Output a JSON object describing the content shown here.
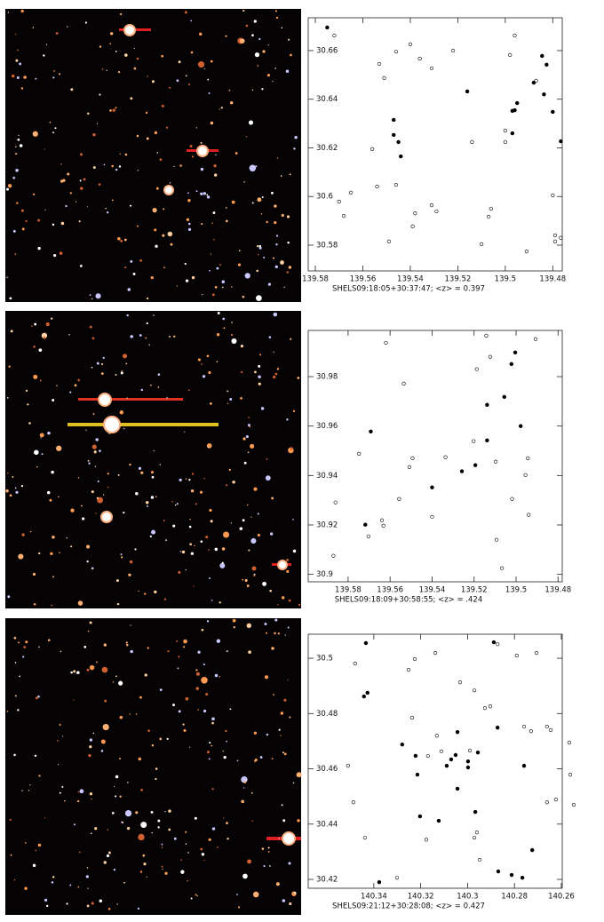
{
  "chart_data": [
    {
      "type": "scatter",
      "xlabel": "SHELS09:18:05+30:37:47; <z> = 0.397",
      "xlim": [
        139.583,
        139.476
      ],
      "ylim": [
        30.5694,
        30.6735
      ],
      "xticks": [
        139.58,
        139.56,
        139.54,
        139.52,
        139.5,
        139.48
      ],
      "yticks": [
        30.58,
        30.6,
        30.62,
        30.64,
        30.66
      ],
      "series": [
        {
          "color": "#000000",
          "filled": true,
          "x": [
            139.575,
            139.547,
            139.547,
            139.545,
            139.544,
            139.516,
            139.497,
            139.496,
            139.495,
            139.497,
            139.4845,
            139.4826,
            139.488,
            139.4837,
            139.48,
            139.4766
          ],
          "values": [
            30.6695,
            30.6315,
            30.6253,
            30.6224,
            30.6165,
            30.6432,
            30.6352,
            30.6355,
            30.6384,
            30.626,
            30.6578,
            30.6542,
            30.6468,
            30.642,
            30.6348,
            30.6227
          ]
        },
        {
          "color": "#000000",
          "filled": false,
          "x": [
            139.572,
            139.553,
            139.551,
            139.546,
            139.54,
            139.536,
            139.531,
            139.522,
            139.556,
            139.554,
            139.565,
            139.57,
            139.568,
            139.538,
            139.529,
            139.531,
            139.546,
            139.539,
            139.549,
            139.51,
            139.507,
            139.506,
            139.514,
            139.5,
            139.498,
            139.496,
            139.491,
            139.487,
            139.479,
            139.479,
            139.4766,
            139.48,
            139.5
          ],
          "values": [
            30.6662,
            30.6545,
            30.6487,
            30.6596,
            30.6626,
            30.6567,
            30.6527,
            30.66,
            30.6195,
            30.6041,
            30.6016,
            30.5979,
            30.592,
            30.5931,
            30.5939,
            30.5964,
            30.6048,
            30.5877,
            30.5815,
            30.5804,
            30.5917,
            30.595,
            30.6224,
            30.6271,
            30.6582,
            30.6662,
            30.5774,
            30.6476,
            30.5815,
            30.584,
            30.583,
            30.6005,
            30.6224
          ]
        }
      ]
    },
    {
      "type": "scatter",
      "xlabel": "SHELS09:18:09+30:58:55; <z> = .424",
      "xlim": [
        139.599,
        139.478
      ],
      "ylim": [
        30.897,
        30.9987
      ],
      "xticks": [
        139.58,
        139.56,
        139.54,
        139.52,
        139.5,
        139.48
      ],
      "yticks": [
        30.9,
        30.92,
        30.94,
        30.96,
        30.98
      ],
      "series": [
        {
          "color": "#000000",
          "filled": true,
          "x": [
            139.5718,
            139.5692,
            139.54,
            139.5258,
            139.5194,
            139.5138,
            139.5138,
            139.5056,
            139.5022,
            139.5004,
            139.4978
          ],
          "values": [
            30.9201,
            30.9578,
            30.9352,
            30.9417,
            30.9442,
            30.9542,
            30.9686,
            30.9718,
            30.9851,
            30.9898,
            30.96
          ]
        },
        {
          "color": "#000000",
          "filled": false,
          "x": [
            139.586,
            139.5748,
            139.562,
            139.5535,
            139.5508,
            139.5557,
            139.5639,
            139.5632,
            139.5703,
            139.5493,
            139.54,
            139.5336,
            139.5202,
            139.5142,
            139.5123,
            139.5097,
            139.5093,
            139.5067,
            139.4955,
            139.5019,
            139.4944,
            139.494,
            139.4907,
            139.587,
            139.5187
          ],
          "values": [
            30.9291,
            30.9488,
            30.9937,
            30.9772,
            30.9434,
            30.9305,
            30.9219,
            30.9197,
            30.9154,
            30.947,
            30.9233,
            30.9474,
            30.9539,
            30.9966,
            30.988,
            30.9456,
            30.914,
            30.9025,
            30.9402,
            30.9305,
            30.947,
            30.9241,
            30.9952,
            30.9075,
            30.983
          ]
        }
      ]
    },
    {
      "type": "scatter",
      "xlabel": "SHELS09:21:12+30:28:08; <z> = 0.427",
      "xlim": [
        140.368,
        140.2596
      ],
      "ylim": [
        30.4168,
        30.5087
      ],
      "xticks": [
        140.34,
        140.32,
        140.3,
        140.28,
        140.26
      ],
      "yticks": [
        30.42,
        30.44,
        30.46,
        30.48,
        30.5
      ],
      "series": [
        {
          "color": "#000000",
          "filled": true,
          "x": [
            140.3434,
            140.3427,
            140.3442,
            140.3279,
            140.3222,
            140.3214,
            140.3203,
            140.3123,
            140.3089,
            140.307,
            140.3051,
            140.3043,
            140.3043,
            140.2998,
            140.2998,
            140.2956,
            140.2967,
            140.2872,
            140.2888,
            140.2759,
            140.2724,
            140.2869,
            140.2812,
            140.2766,
            140.3377
          ],
          "values": [
            30.5055,
            30.4875,
            30.4862,
            30.4688,
            30.4647,
            30.4579,
            30.4428,
            30.4412,
            30.4611,
            30.4634,
            30.465,
            30.4733,
            30.4528,
            30.4605,
            30.4627,
            30.4659,
            30.4444,
            30.4749,
            30.5058,
            30.4611,
            30.4306,
            30.4229,
            30.4216,
            30.4206,
            30.419
          ]
        },
        {
          "color": "#000000",
          "filled": false,
          "x": [
            140.348,
            140.351,
            140.3487,
            140.3438,
            140.3252,
            140.3225,
            140.3138,
            140.3237,
            140.3131,
            140.3112,
            140.3169,
            140.3032,
            140.2971,
            140.2926,
            140.2903,
            140.2872,
            140.279,
            140.2706,
            140.2759,
            140.2729,
            140.2661,
            140.2645,
            140.2566,
            140.2562,
            140.2623,
            140.2661,
            140.2547,
            140.296,
            140.2971,
            140.2948,
            140.3301,
            140.299,
            140.3176
          ],
          "values": [
            30.4981,
            30.4611,
            30.4479,
            30.4351,
            30.4958,
            30.4997,
            30.5019,
            30.4785,
            30.472,
            30.4663,
            30.4647,
            30.4913,
            30.4884,
            30.482,
            30.4826,
            30.5051,
            30.501,
            30.5019,
            30.4753,
            30.4736,
            30.4753,
            30.474,
            30.4695,
            30.4579,
            30.4489,
            30.4479,
            30.447,
            30.437,
            30.4351,
            30.4271,
            30.4206,
            30.4666,
            30.4344
          ]
        }
      ]
    }
  ]
}
